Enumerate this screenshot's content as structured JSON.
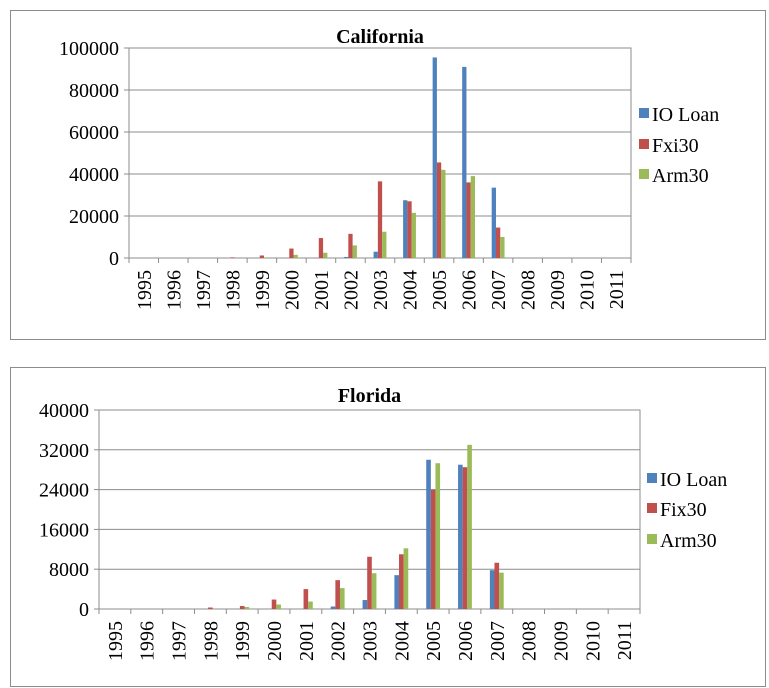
{
  "chart_data": [
    {
      "type": "bar",
      "title": "California",
      "categories": [
        "1995",
        "1996",
        "1997",
        "1998",
        "1999",
        "2000",
        "2001",
        "2002",
        "2003",
        "2004",
        "2005",
        "2006",
        "2007",
        "2008",
        "2009",
        "2010",
        "2011"
      ],
      "yticks": [
        "0",
        "20000",
        "40000",
        "60000",
        "80000",
        "100000"
      ],
      "ylim": [
        0,
        100000
      ],
      "grid": true,
      "legend_position": "right",
      "series": [
        {
          "name": "IO Loan",
          "color": "#4f81bd",
          "values": [
            0,
            0,
            0,
            0,
            0,
            0,
            0,
            500,
            3000,
            27500,
            95500,
            91000,
            33500,
            0,
            0,
            0,
            0
          ]
        },
        {
          "name": "Fxi30",
          "color": "#c0504d",
          "values": [
            0,
            0,
            0,
            300,
            1200,
            4500,
            9500,
            11500,
            36500,
            27000,
            45500,
            36000,
            14500,
            0,
            0,
            0,
            0
          ]
        },
        {
          "name": "Arm30",
          "color": "#9bbb59",
          "values": [
            0,
            0,
            0,
            0,
            300,
            1500,
            2500,
            6000,
            12500,
            21500,
            42000,
            39000,
            10000,
            0,
            0,
            0,
            0
          ]
        }
      ]
    },
    {
      "type": "bar",
      "title": "Florida",
      "categories": [
        "1995",
        "1996",
        "1997",
        "1998",
        "1999",
        "2000",
        "2001",
        "2002",
        "2003",
        "2004",
        "2005",
        "2006",
        "2007",
        "2008",
        "2009",
        "2010",
        "2011"
      ],
      "yticks": [
        "0",
        "8000",
        "16000",
        "24000",
        "32000",
        "40000"
      ],
      "ylim": [
        0,
        40000
      ],
      "grid": true,
      "legend_position": "right",
      "series": [
        {
          "name": "IO Loan",
          "color": "#4f81bd",
          "values": [
            0,
            0,
            0,
            0,
            0,
            0,
            0,
            500,
            1800,
            6800,
            30000,
            29000,
            7800,
            0,
            0,
            0,
            0
          ]
        },
        {
          "name": "Fix30",
          "color": "#c0504d",
          "values": [
            0,
            0,
            0,
            300,
            600,
            1900,
            4000,
            5800,
            10500,
            11000,
            24000,
            28500,
            9300,
            0,
            0,
            0,
            0
          ]
        },
        {
          "name": "Arm30",
          "color": "#9bbb59",
          "values": [
            0,
            0,
            0,
            0,
            400,
            900,
            1500,
            4200,
            7200,
            12200,
            29300,
            33000,
            7300,
            0,
            0,
            0,
            0
          ]
        }
      ]
    }
  ]
}
